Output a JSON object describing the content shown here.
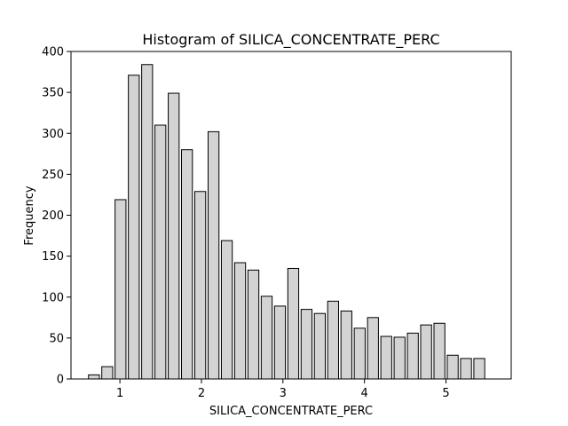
{
  "chart_data": {
    "type": "bar",
    "title": "Histogram of SILICA_CONCENTRATE_PERC",
    "xlabel": "SILICA_CONCENTRATE_PERC",
    "ylabel": "Frequency",
    "xlim": [
      0.4,
      5.8
    ],
    "ylim": [
      0,
      400
    ],
    "xticks": [
      1,
      2,
      3,
      4,
      5
    ],
    "yticks": [
      0,
      50,
      100,
      150,
      200,
      250,
      300,
      350,
      400
    ],
    "bin_edges": [
      0.6,
      0.763,
      0.926,
      1.089,
      1.252,
      1.415,
      1.578,
      1.741,
      1.904,
      2.067,
      2.23,
      2.393,
      2.556,
      2.719,
      2.882,
      3.045,
      3.208,
      3.371,
      3.534,
      3.697,
      3.86,
      4.023,
      4.186,
      4.349,
      4.512,
      4.675,
      4.838,
      5.001,
      5.164,
      5.327,
      5.49
    ],
    "values": [
      5,
      15,
      219,
      371,
      384,
      310,
      349,
      280,
      229,
      302,
      169,
      142,
      133,
      101,
      89,
      135,
      85,
      80,
      95,
      83,
      62,
      75,
      52,
      51,
      56,
      66,
      68,
      29,
      25,
      25
    ],
    "bar_fill": "#d3d3d3",
    "bar_edge": "#000000",
    "grid": false,
    "legend": "none"
  }
}
